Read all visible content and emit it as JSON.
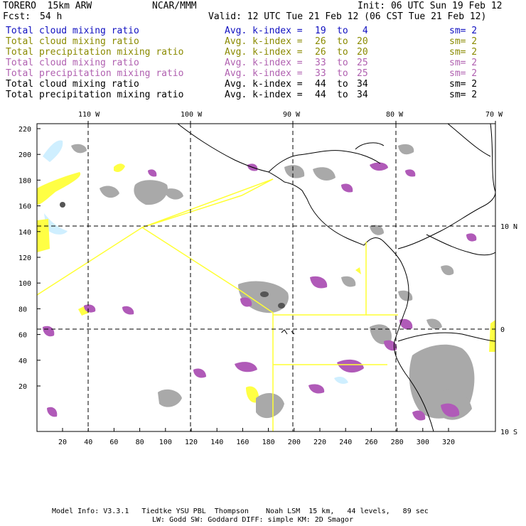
{
  "header": {
    "model": "TORERO  15km ARW",
    "center": "NCAR/MMM",
    "init": "Init: 06 UTC Sun 19 Feb 12",
    "fcst_label": "Fcst:",
    "fcst_value": "54 h",
    "valid": "Valid: 12 UTC Tue 21 Feb 12 (06 CST Tue 21 Feb 12)"
  },
  "legend": [
    {
      "label": "Total cloud mixing ratio",
      "avg": "Avg. k-index =",
      "from": "19",
      "to": "4",
      "sm": "sm= 2",
      "color": "#1010c0"
    },
    {
      "label": "Total cloud mixing ratio",
      "avg": "Avg. k-index =",
      "from": "26",
      "to": "20",
      "sm": "sm= 2",
      "color": "#8a8a00"
    },
    {
      "label": "Total precipitation mixing ratio",
      "avg": "Avg. k-index =",
      "from": "26",
      "to": "20",
      "sm": "sm= 2",
      "color": "#8a8a00"
    },
    {
      "label": "Total cloud mixing ratio",
      "avg": "Avg. k-index =",
      "from": "33",
      "to": "25",
      "sm": "sm= 2",
      "color": "#b060b0"
    },
    {
      "label": "Total precipitation mixing ratio",
      "avg": "Avg. k-index =",
      "from": "33",
      "to": "25",
      "sm": "sm= 2",
      "color": "#b060b0"
    },
    {
      "label": "Total cloud mixing ratio",
      "avg": "Avg. k-index =",
      "from": "44",
      "to": "34",
      "sm": "sm= 2",
      "color": "#000000"
    },
    {
      "label": "Total precipitation mixing ratio",
      "avg": "Avg. k-index =",
      "from": "44",
      "to": "34",
      "sm": "sm= 2",
      "color": "#000000"
    }
  ],
  "map": {
    "lon_labels": [
      "110 W",
      "100 W",
      "90 W",
      "80 W",
      "70 W"
    ],
    "lat_labels": [
      "10 N",
      "0",
      "10 S"
    ],
    "y_ticks": [
      "220",
      "200",
      "180",
      "160",
      "140",
      "120",
      "100",
      "80",
      "60",
      "40",
      "20"
    ],
    "x_ticks": [
      "20",
      "40",
      "60",
      "80",
      "100",
      "120",
      "140",
      "160",
      "180",
      "200",
      "220",
      "240",
      "260",
      "280",
      "300",
      "320"
    ],
    "colors": {
      "cloud_gray": "#a9a9a9",
      "cloud_dark": "#555555",
      "purple": "#b05ab8",
      "yellow": "#ffff44",
      "light_blue": "#cfefff",
      "boundary": "#ffff33",
      "grid": "#000000"
    }
  },
  "footer": {
    "line1": "Model Info: V3.3.1   Tiedtke YSU PBL  Thompson    Noah LSM  15 km,   44 levels,   89 sec",
    "line2": "LW: Godd SW: Goddard DIFF: simple KM: 2D Smagor"
  }
}
